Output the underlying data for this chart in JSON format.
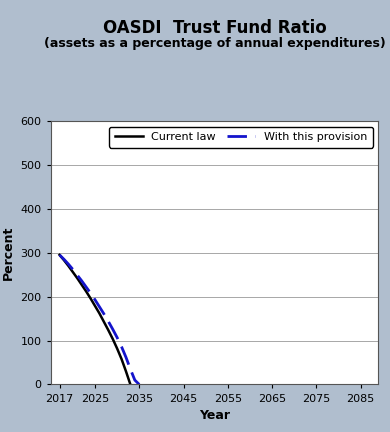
{
  "title": "OASDI  Trust Fund Ratio",
  "subtitle": "(assets as a percentage of annual expenditures)",
  "xlabel": "Year",
  "ylabel": "Percent",
  "background_color": "#b0bece",
  "plot_background_color": "#ffffff",
  "ylim": [
    0,
    600
  ],
  "yticks": [
    0,
    100,
    200,
    300,
    400,
    500,
    600
  ],
  "xlim": [
    2015,
    2089
  ],
  "xticks": [
    2017,
    2025,
    2035,
    2045,
    2055,
    2065,
    2075,
    2085
  ],
  "current_law_x": [
    2017,
    2018,
    2019,
    2020,
    2021,
    2022,
    2023,
    2024,
    2025,
    2026,
    2027,
    2028,
    2029,
    2030,
    2031,
    2032,
    2033
  ],
  "current_law_y": [
    295,
    283,
    270,
    256,
    242,
    227,
    212,
    196,
    179,
    162,
    143,
    124,
    104,
    82,
    58,
    30,
    0
  ],
  "provision_x": [
    2017,
    2018,
    2019,
    2020,
    2021,
    2022,
    2023,
    2024,
    2025,
    2026,
    2027,
    2028,
    2029,
    2030,
    2031,
    2032,
    2033,
    2034,
    2035
  ],
  "provision_y": [
    295,
    285,
    274,
    262,
    249,
    236,
    222,
    208,
    193,
    177,
    161,
    144,
    126,
    107,
    86,
    62,
    35,
    10,
    0
  ],
  "legend_current_law": "Current law",
  "legend_provision": "With this provision",
  "current_law_color": "#000000",
  "provision_color": "#1414cc",
  "title_fontsize": 12,
  "subtitle_fontsize": 9,
  "axis_label_fontsize": 9,
  "tick_fontsize": 8,
  "legend_fontsize": 8
}
